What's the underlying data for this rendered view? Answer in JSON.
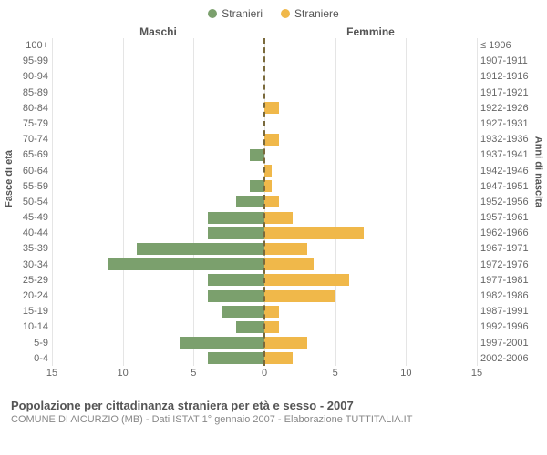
{
  "legend": {
    "male": {
      "label": "Stranieri",
      "color": "#7ba06d"
    },
    "female": {
      "label": "Straniere",
      "color": "#f0b84a"
    }
  },
  "column_headers": {
    "left": "Maschi",
    "right": "Femmine"
  },
  "axis_titles": {
    "left": "Fasce di età",
    "right": "Anni di nascita"
  },
  "chart": {
    "type": "population-pyramid",
    "x_max": 15,
    "x_ticks": [
      15,
      10,
      5,
      0,
      5,
      10,
      15
    ],
    "grid_color": "#e5e5e5",
    "center_line_color": "#7a6a3c",
    "background_color": "#ffffff",
    "bar_color_male": "#7ba06d",
    "bar_color_female": "#f0b84a",
    "label_fontsize": 11,
    "rows": [
      {
        "age": "100+",
        "birth": "≤ 1906",
        "m": 0,
        "f": 0
      },
      {
        "age": "95-99",
        "birth": "1907-1911",
        "m": 0,
        "f": 0
      },
      {
        "age": "90-94",
        "birth": "1912-1916",
        "m": 0,
        "f": 0
      },
      {
        "age": "85-89",
        "birth": "1917-1921",
        "m": 0,
        "f": 0
      },
      {
        "age": "80-84",
        "birth": "1922-1926",
        "m": 0,
        "f": 1
      },
      {
        "age": "75-79",
        "birth": "1927-1931",
        "m": 0,
        "f": 0
      },
      {
        "age": "70-74",
        "birth": "1932-1936",
        "m": 0,
        "f": 1
      },
      {
        "age": "65-69",
        "birth": "1937-1941",
        "m": 1,
        "f": 0
      },
      {
        "age": "60-64",
        "birth": "1942-1946",
        "m": 0,
        "f": 0.5
      },
      {
        "age": "55-59",
        "birth": "1947-1951",
        "m": 1,
        "f": 0.5
      },
      {
        "age": "50-54",
        "birth": "1952-1956",
        "m": 2,
        "f": 1
      },
      {
        "age": "45-49",
        "birth": "1957-1961",
        "m": 4,
        "f": 2
      },
      {
        "age": "40-44",
        "birth": "1962-1966",
        "m": 4,
        "f": 7
      },
      {
        "age": "35-39",
        "birth": "1967-1971",
        "m": 9,
        "f": 3
      },
      {
        "age": "30-34",
        "birth": "1972-1976",
        "m": 11,
        "f": 3.5
      },
      {
        "age": "25-29",
        "birth": "1977-1981",
        "m": 4,
        "f": 6
      },
      {
        "age": "20-24",
        "birth": "1982-1986",
        "m": 4,
        "f": 5
      },
      {
        "age": "15-19",
        "birth": "1987-1991",
        "m": 3,
        "f": 1
      },
      {
        "age": "10-14",
        "birth": "1992-1996",
        "m": 2,
        "f": 1
      },
      {
        "age": "5-9",
        "birth": "1997-2001",
        "m": 6,
        "f": 3
      },
      {
        "age": "0-4",
        "birth": "2002-2006",
        "m": 4,
        "f": 2
      }
    ]
  },
  "caption": {
    "title": "Popolazione per cittadinanza straniera per età e sesso - 2007",
    "subtitle": "COMUNE DI AICURZIO (MB) - Dati ISTAT 1° gennaio 2007 - Elaborazione TUTTITALIA.IT"
  }
}
